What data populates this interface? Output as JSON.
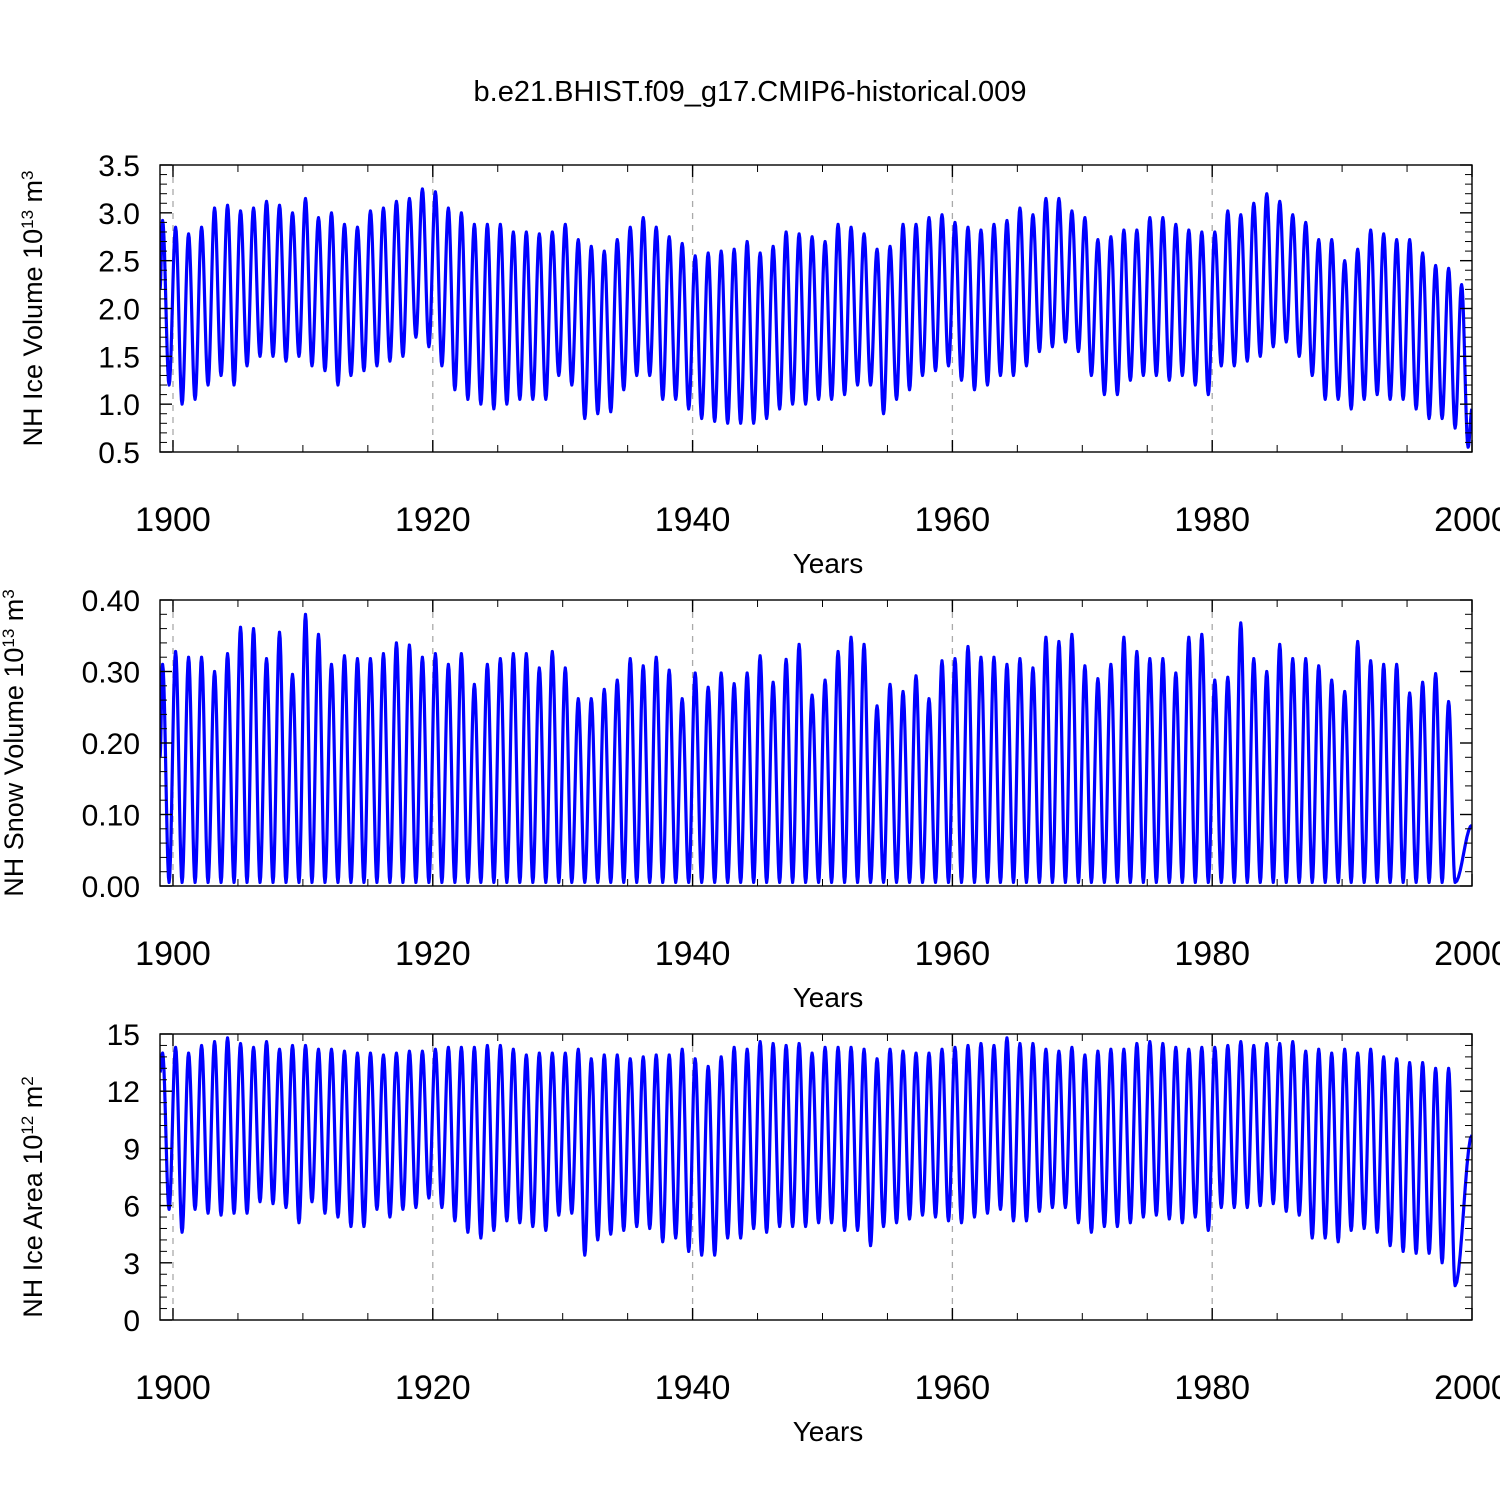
{
  "title": "b.e21.BHIST.f09_g17.CMIP6-historical.009",
  "colors": {
    "line": "#0000ff",
    "axis": "#000000",
    "grid": "#aaaaaa"
  },
  "chart_data": [
    {
      "type": "line",
      "series_name": "NH Ice Volume",
      "ylabel": {
        "base": "NH Ice Volume 10",
        "exp1": "13",
        "mid": " m",
        "exp2": "3"
      },
      "xlabel": "Years",
      "xlim": [
        1899,
        2000
      ],
      "ylim": [
        0.5,
        3.5
      ],
      "xticks": [
        "1900",
        "1920",
        "1940",
        "1960",
        "1980",
        "2000"
      ],
      "yticks": [
        "0.5",
        "1.0",
        "1.5",
        "2.0",
        "2.5",
        "3.0",
        "3.5"
      ],
      "grid": "vertical dashed at major x ticks",
      "maxima": [
        2.92,
        2.85,
        2.78,
        2.85,
        3.05,
        3.08,
        3.02,
        3.05,
        3.12,
        3.08,
        3.0,
        3.15,
        2.95,
        3.0,
        2.88,
        2.85,
        3.02,
        3.05,
        3.12,
        3.15,
        3.25,
        3.22,
        3.05,
        3.0,
        2.88,
        2.88,
        2.88,
        2.8,
        2.8,
        2.78,
        2.8,
        2.88,
        2.72,
        2.65,
        2.6,
        2.72,
        2.85,
        2.95,
        2.85,
        2.75,
        2.68,
        2.55,
        2.58,
        2.6,
        2.62,
        2.7,
        2.58,
        2.65,
        2.8,
        2.78,
        2.75,
        2.7,
        2.88,
        2.85,
        2.78,
        2.62,
        2.65,
        2.88,
        2.88,
        2.95,
        2.98,
        2.9,
        2.85,
        2.82,
        2.88,
        2.92,
        3.05,
        2.98,
        3.15,
        3.15,
        3.02,
        2.95,
        2.72,
        2.75,
        2.82,
        2.82,
        2.95,
        2.95,
        2.88,
        2.82,
        2.8,
        2.8,
        3.02,
        2.98,
        3.1,
        3.2,
        3.12,
        2.98,
        2.9,
        2.72,
        2.72,
        2.5,
        2.62,
        2.82,
        2.78,
        2.72,
        2.72,
        2.58,
        2.45,
        2.42,
        2.25
      ],
      "minima": [
        1.2,
        1.0,
        1.05,
        1.2,
        1.3,
        1.2,
        1.4,
        1.5,
        1.5,
        1.45,
        1.5,
        1.4,
        1.35,
        1.2,
        1.3,
        1.35,
        1.4,
        1.45,
        1.5,
        1.7,
        1.6,
        1.4,
        1.15,
        1.05,
        1.0,
        0.95,
        1.0,
        1.05,
        1.05,
        1.05,
        1.3,
        1.2,
        0.85,
        0.9,
        0.92,
        1.15,
        1.3,
        1.3,
        1.05,
        1.05,
        0.95,
        0.85,
        0.82,
        0.8,
        0.8,
        0.8,
        0.85,
        0.95,
        1.0,
        1.0,
        1.05,
        1.05,
        1.1,
        1.2,
        1.2,
        0.9,
        1.05,
        1.15,
        1.3,
        1.35,
        1.4,
        1.25,
        1.15,
        1.2,
        1.3,
        1.3,
        1.4,
        1.55,
        1.6,
        1.65,
        1.55,
        1.3,
        1.1,
        1.1,
        1.25,
        1.3,
        1.3,
        1.25,
        1.3,
        1.2,
        1.1,
        1.4,
        1.4,
        1.45,
        1.5,
        1.6,
        1.65,
        1.5,
        1.3,
        1.05,
        1.05,
        0.95,
        1.05,
        1.1,
        1.05,
        1.05,
        0.95,
        0.85,
        0.85,
        0.75,
        0.55
      ],
      "start_value": 2.2,
      "end_value": 0.95
    },
    {
      "type": "line",
      "series_name": "NH Snow Volume",
      "ylabel": {
        "base": "NH Snow Volume 10",
        "exp1": "13",
        "mid": " m",
        "exp2": "3"
      },
      "xlabel": "Years",
      "xlim": [
        1899,
        2000
      ],
      "ylim": [
        0,
        0.4
      ],
      "xticks": [
        "1900",
        "1920",
        "1940",
        "1960",
        "1980",
        "2000"
      ],
      "yticks": [
        "0.00",
        "0.10",
        "0.20",
        "0.30",
        "0.40"
      ],
      "grid": "vertical dashed at major x ticks",
      "maxima": [
        0.31,
        0.328,
        0.32,
        0.32,
        0.3,
        0.325,
        0.362,
        0.36,
        0.318,
        0.355,
        0.296,
        0.38,
        0.352,
        0.31,
        0.322,
        0.318,
        0.318,
        0.325,
        0.34,
        0.337,
        0.32,
        0.325,
        0.31,
        0.325,
        0.282,
        0.31,
        0.318,
        0.325,
        0.325,
        0.305,
        0.328,
        0.305,
        0.262,
        0.262,
        0.275,
        0.288,
        0.318,
        0.308,
        0.32,
        0.302,
        0.262,
        0.298,
        0.278,
        0.298,
        0.283,
        0.298,
        0.322,
        0.285,
        0.317,
        0.338,
        0.267,
        0.288,
        0.328,
        0.348,
        0.338,
        0.252,
        0.282,
        0.272,
        0.294,
        0.262,
        0.315,
        0.318,
        0.335,
        0.32,
        0.32,
        0.31,
        0.318,
        0.305,
        0.348,
        0.342,
        0.352,
        0.308,
        0.29,
        0.31,
        0.348,
        0.328,
        0.318,
        0.318,
        0.298,
        0.348,
        0.352,
        0.288,
        0.292,
        0.368,
        0.318,
        0.3,
        0.338,
        0.318,
        0.318,
        0.308,
        0.288,
        0.272,
        0.342,
        0.315,
        0.31,
        0.31,
        0.27,
        0.285,
        0.297,
        0.258
      ],
      "minima": 0.005,
      "start_value": 0.18,
      "end_value": 0.085
    },
    {
      "type": "line",
      "series_name": "NH Ice Area",
      "ylabel": {
        "base": "NH Ice Area 10",
        "exp1": "12",
        "mid": " m",
        "exp2": "2"
      },
      "xlabel": "Years",
      "xlim": [
        1899,
        2000
      ],
      "ylim": [
        0,
        15
      ],
      "xticks": [
        "1900",
        "1920",
        "1940",
        "1960",
        "1980",
        "2000"
      ],
      "yticks": [
        "0",
        "3",
        "6",
        "9",
        "12",
        "15"
      ],
      "grid": "vertical dashed at major x ticks",
      "maxima": [
        14.0,
        14.3,
        14.0,
        14.4,
        14.6,
        14.8,
        14.5,
        14.3,
        14.6,
        14.2,
        14.4,
        14.4,
        14.2,
        14.2,
        14.1,
        14.0,
        14.0,
        13.9,
        14.0,
        14.1,
        14.1,
        14.2,
        14.3,
        14.3,
        14.3,
        14.4,
        14.4,
        14.2,
        13.9,
        14.0,
        14.0,
        14.0,
        14.2,
        13.7,
        13.9,
        13.9,
        13.7,
        13.8,
        13.9,
        13.9,
        14.2,
        13.7,
        13.3,
        13.8,
        14.3,
        14.2,
        14.6,
        14.5,
        14.4,
        14.5,
        14.0,
        14.3,
        14.3,
        14.3,
        14.2,
        13.7,
        14.2,
        14.1,
        14.0,
        14.0,
        14.2,
        14.3,
        14.4,
        14.5,
        14.4,
        14.8,
        14.5,
        14.5,
        14.2,
        14.1,
        14.3,
        13.9,
        14.1,
        14.2,
        14.2,
        14.5,
        14.6,
        14.5,
        14.3,
        14.2,
        14.3,
        14.3,
        14.4,
        14.6,
        14.4,
        14.5,
        14.5,
        14.6,
        14.1,
        14.2,
        14.0,
        14.2,
        14.0,
        14.2,
        13.8,
        13.7,
        13.5,
        13.5,
        13.2,
        13.2
      ],
      "minima": [
        5.8,
        4.6,
        5.8,
        5.6,
        5.5,
        5.6,
        5.6,
        6.2,
        6.1,
        5.9,
        5.1,
        6.2,
        5.6,
        5.4,
        4.9,
        4.9,
        5.8,
        5.4,
        5.8,
        5.9,
        6.4,
        5.9,
        5.2,
        4.6,
        4.3,
        4.7,
        5.2,
        5.1,
        4.9,
        4.7,
        5.5,
        5.6,
        3.4,
        4.2,
        4.5,
        4.7,
        4.9,
        4.8,
        4.1,
        4.3,
        3.6,
        3.4,
        3.4,
        4.3,
        4.3,
        4.8,
        4.6,
        4.9,
        4.9,
        4.9,
        5.1,
        5.1,
        4.7,
        4.7,
        3.9,
        4.9,
        5.1,
        5.3,
        5.5,
        5.4,
        5.2,
        5.1,
        5.4,
        5.6,
        5.8,
        5.2,
        5.2,
        5.7,
        5.9,
        5.9,
        5.1,
        4.6,
        4.9,
        4.9,
        5.1,
        5.4,
        5.5,
        5.3,
        5.1,
        5.4,
        4.7,
        5.9,
        5.9,
        5.9,
        6.0,
        6.1,
        5.7,
        5.5,
        4.3,
        4.3,
        4.1,
        4.7,
        4.8,
        4.6,
        3.9,
        3.6,
        3.5,
        3.5,
        3.0,
        1.8
      ],
      "start_value": 13.0,
      "end_value": 9.7
    }
  ]
}
